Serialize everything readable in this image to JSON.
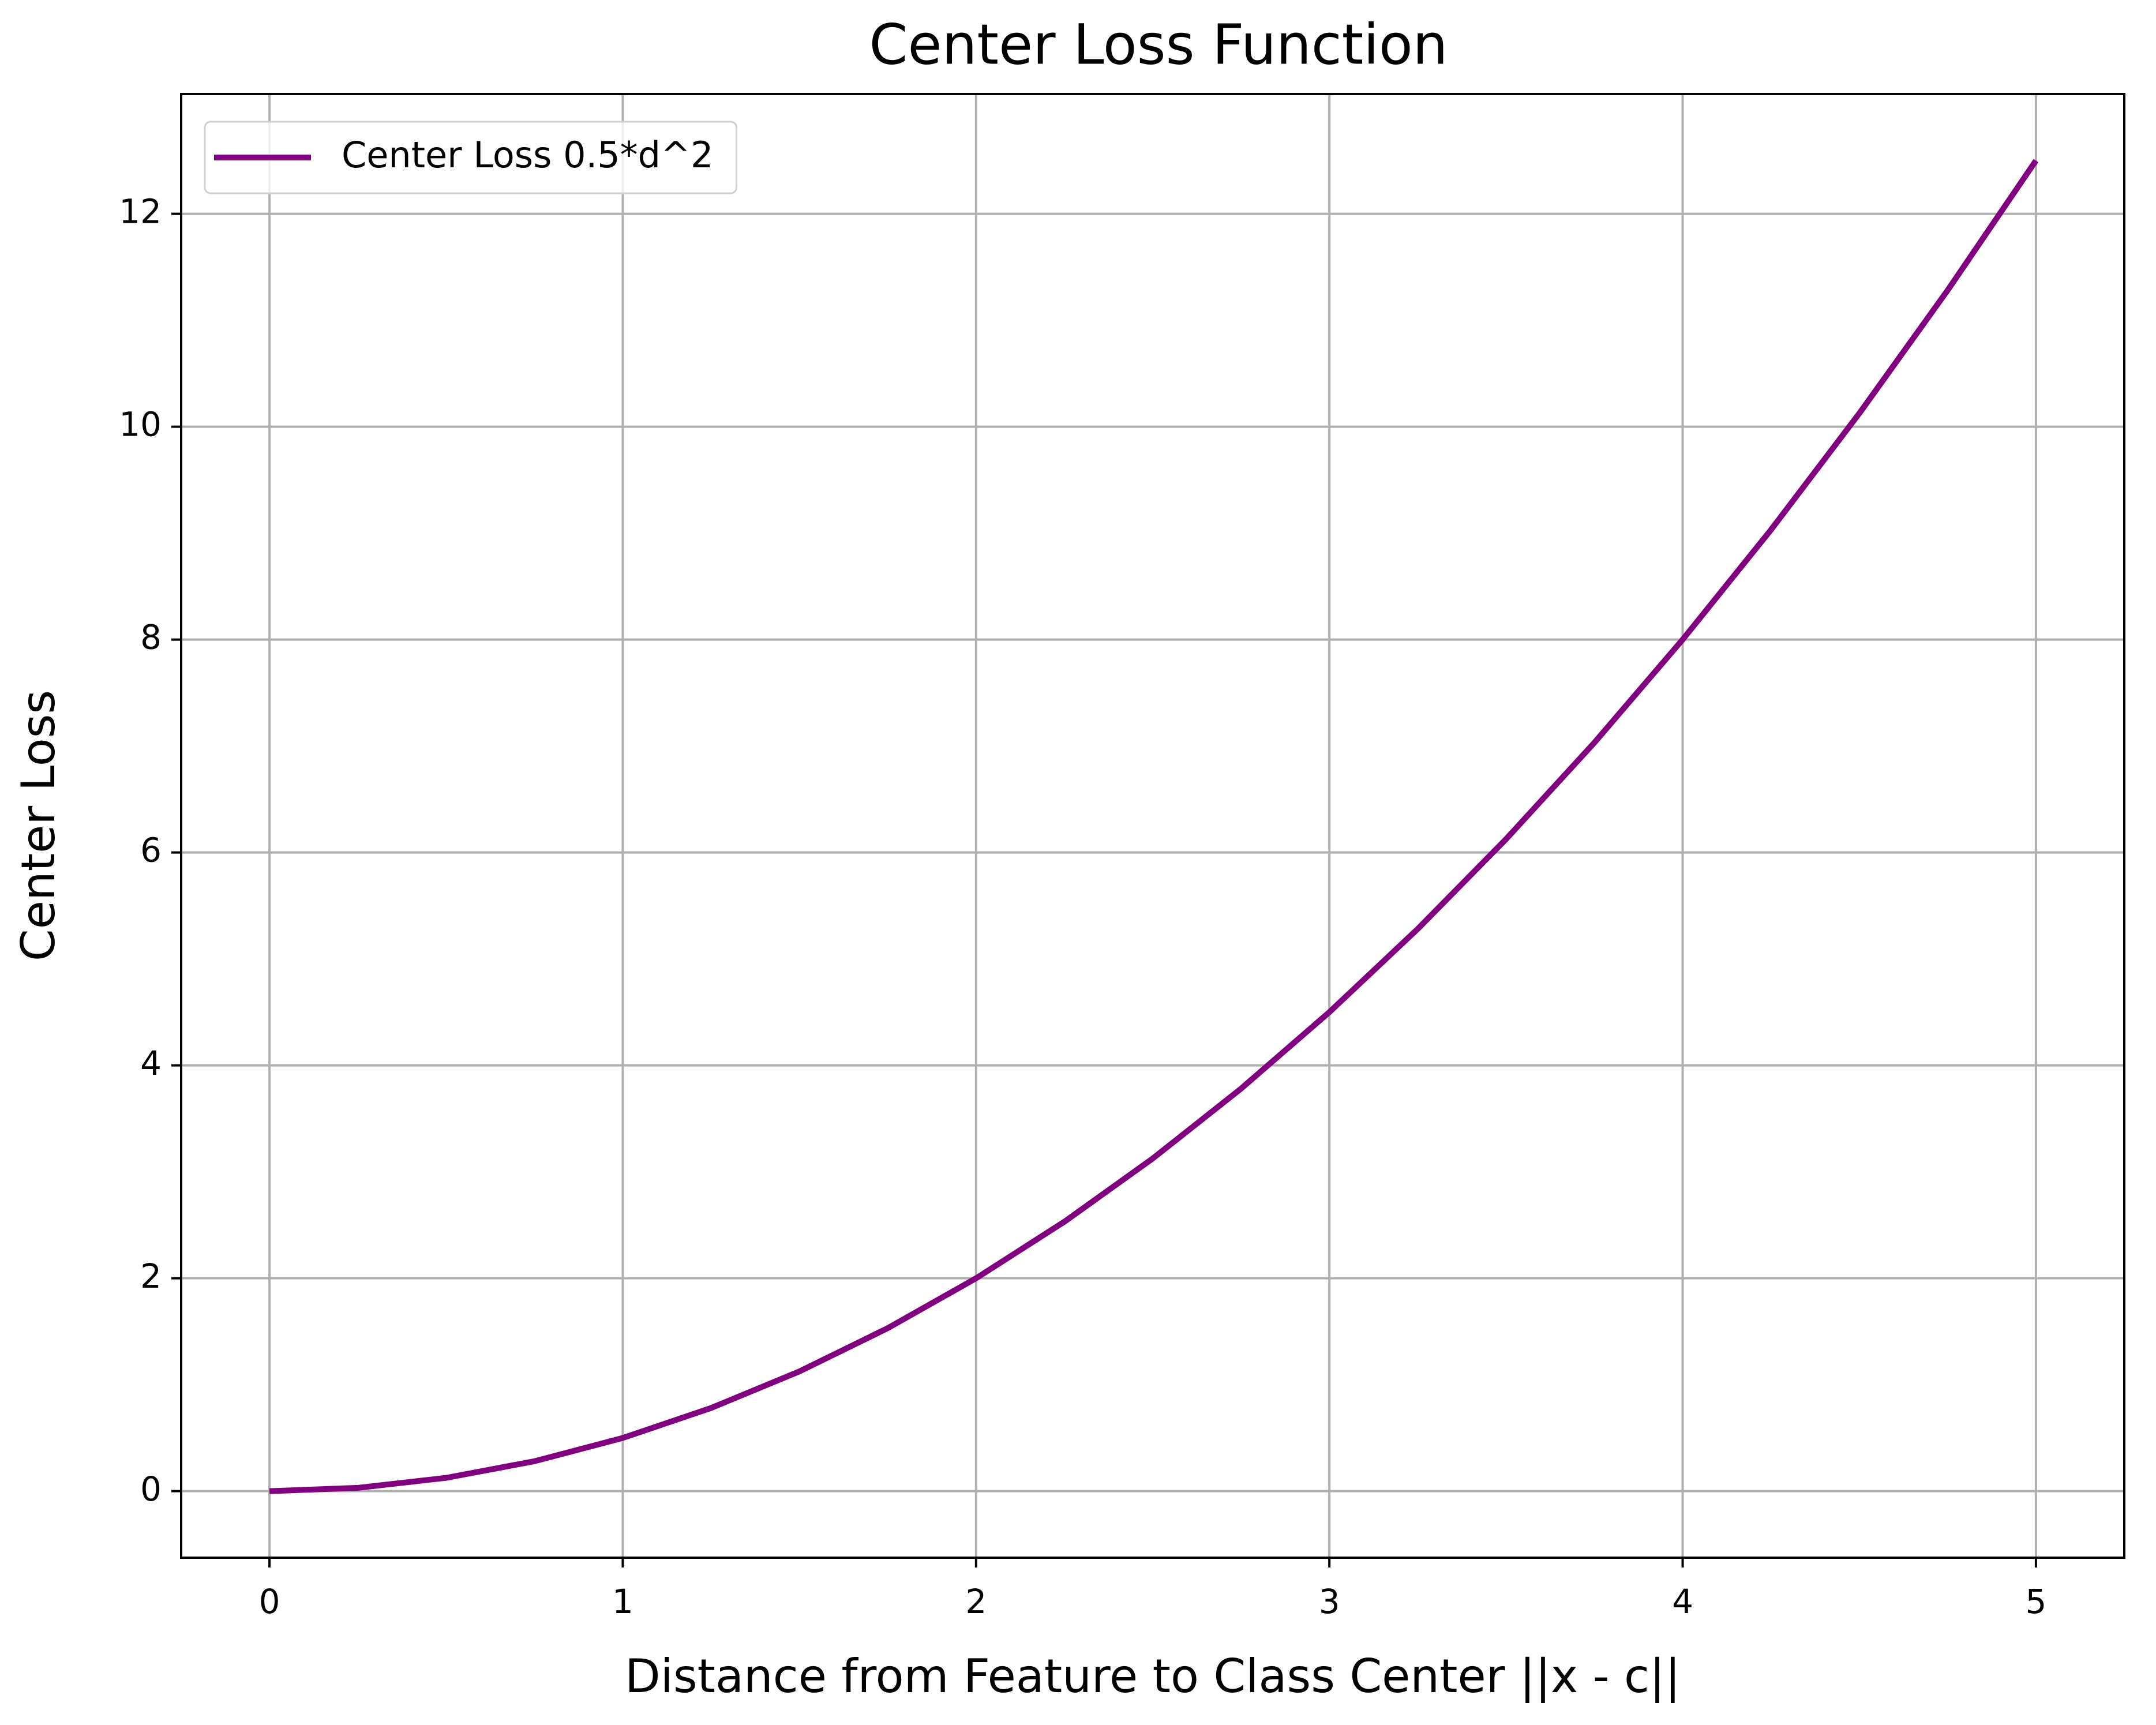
{
  "chart_data": {
    "type": "line",
    "title": "Center Loss Function",
    "xlabel": "Distance from Feature to Class Center ||x - c||",
    "ylabel": "Center Loss",
    "x": [
      0,
      0.25,
      0.5,
      0.75,
      1,
      1.25,
      1.5,
      1.75,
      2,
      2.25,
      2.5,
      2.75,
      3,
      3.25,
      3.5,
      3.75,
      4,
      4.25,
      4.5,
      4.75,
      5
    ],
    "series": [
      {
        "name": "Center Loss 0.5*d^2",
        "color": "#800080",
        "values": [
          0,
          0.03125,
          0.125,
          0.28125,
          0.5,
          0.78125,
          1.125,
          1.53125,
          2,
          2.53125,
          3.125,
          3.78125,
          4.5,
          5.28125,
          6.125,
          7.03125,
          8,
          9.03125,
          10.125,
          11.28125,
          12.5
        ]
      }
    ],
    "xlim": [
      -0.25,
      5.25
    ],
    "xticks": [
      0,
      1,
      2,
      3,
      4,
      5
    ],
    "ylim": [
      -0.625,
      13.125
    ],
    "yticks": [
      0,
      2,
      4,
      6,
      8,
      10,
      12
    ],
    "grid": true,
    "legend": "upper left"
  }
}
